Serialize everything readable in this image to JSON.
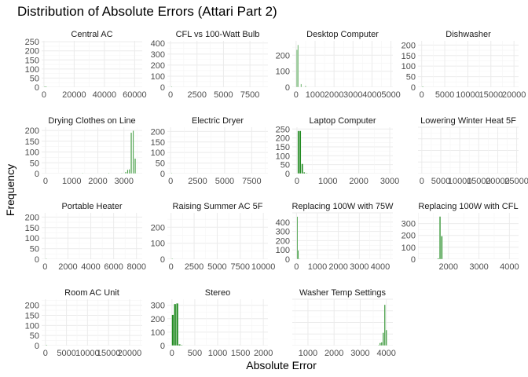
{
  "chart_data": {
    "type": "bar",
    "title": "Distribution of Absolute Errors (Attari Part 2)",
    "xlabel": "Absolute Error",
    "ylabel": "Frequency",
    "bar_color": "#228B22",
    "background": "#ffffff",
    "grid_color": "#ebebeb",
    "panels": [
      {
        "name": "Central AC",
        "xlim": [
          -1500,
          65000
        ],
        "ylim": [
          0,
          255
        ],
        "xticks": [
          0,
          20000,
          40000,
          60000
        ],
        "xtick_labels": [
          "0",
          "20000",
          "40000",
          "60000"
        ],
        "yticks": [
          0,
          50,
          100,
          150,
          200,
          250
        ],
        "bins": [
          {
            "x": 0,
            "w": 2000,
            "y": 3
          }
        ]
      },
      {
        "name": "CFL vs 100-Watt Bulb",
        "xlim": [
          -300,
          9200
        ],
        "ylim": [
          0,
          420
        ],
        "xticks": [
          0,
          2500,
          5000,
          7500
        ],
        "xtick_labels": [
          "0",
          "2500",
          "5000",
          "7500"
        ],
        "yticks": [
          0,
          100,
          200,
          300,
          400
        ],
        "bins": [
          {
            "x": 60,
            "w": 100,
            "y": 2
          }
        ]
      },
      {
        "name": "Desktop Computer",
        "xlim": [
          -200,
          5100
        ],
        "ylim": [
          0,
          290
        ],
        "xticks": [
          0,
          1000,
          2000,
          3000,
          4000,
          5000
        ],
        "xtick_labels": [
          "0",
          "1000",
          "2000",
          "3000",
          "4000",
          "5000"
        ],
        "yticks": [
          0,
          100,
          200
        ],
        "bins": [
          {
            "x": 25,
            "w": 45,
            "y": 235
          },
          {
            "x": 75,
            "w": 45,
            "y": 265
          },
          {
            "x": 240,
            "w": 45,
            "y": 20
          },
          {
            "x": 480,
            "w": 45,
            "y": 8
          }
        ]
      },
      {
        "name": "Dishwasher",
        "xlim": [
          -800,
          21000
        ],
        "ylim": [
          0,
          220
        ],
        "xticks": [
          0,
          5000,
          10000,
          15000,
          20000
        ],
        "xtick_labels": [
          "0",
          "5000",
          "10000",
          "15000",
          "20000"
        ],
        "yticks": [
          0,
          50,
          100,
          150,
          200
        ],
        "bins": [
          {
            "x": 50,
            "w": 400,
            "y": 2
          }
        ]
      },
      {
        "name": "Drying Clothes on Line",
        "xlim": [
          -150,
          3700
        ],
        "ylim": [
          0,
          215
        ],
        "xticks": [
          0,
          1000,
          2000,
          3000
        ],
        "xtick_labels": [
          "0",
          "1000",
          "2000",
          "3000"
        ],
        "yticks": [
          0,
          50,
          100,
          150,
          200
        ],
        "bins": [
          {
            "x": 1400,
            "w": 40,
            "y": 2
          },
          {
            "x": 2400,
            "w": 40,
            "y": 3
          },
          {
            "x": 2900,
            "w": 40,
            "y": 2
          },
          {
            "x": 3050,
            "w": 40,
            "y": 8
          },
          {
            "x": 3120,
            "w": 40,
            "y": 18
          },
          {
            "x": 3190,
            "w": 40,
            "y": 20
          },
          {
            "x": 3260,
            "w": 40,
            "y": 190
          },
          {
            "x": 3340,
            "w": 40,
            "y": 200
          },
          {
            "x": 3410,
            "w": 40,
            "y": 70
          }
        ]
      },
      {
        "name": "Electric Dryer",
        "xlim": [
          -300,
          9000
        ],
        "ylim": [
          0,
          220
        ],
        "xticks": [
          0,
          2500,
          5000,
          7500
        ],
        "xtick_labels": [
          "0",
          "2500",
          "5000",
          "7500"
        ],
        "yticks": [
          0,
          50,
          100,
          150,
          200
        ],
        "bins": [
          {
            "x": 60,
            "w": 100,
            "y": 2
          }
        ]
      },
      {
        "name": "Laptop Computer",
        "xlim": [
          -150,
          3100
        ],
        "ylim": [
          0,
          260
        ],
        "xticks": [
          0,
          1000,
          2000,
          3000
        ],
        "xtick_labels": [
          "0",
          "1000",
          "2000",
          "3000"
        ],
        "yticks": [
          0,
          50,
          100,
          150,
          200,
          250
        ],
        "bins": [
          {
            "x": 20,
            "w": 55,
            "y": 240
          },
          {
            "x": 80,
            "w": 55,
            "y": 240
          },
          {
            "x": 145,
            "w": 55,
            "y": 55
          },
          {
            "x": 210,
            "w": 55,
            "y": 8
          },
          {
            "x": 290,
            "w": 55,
            "y": 2
          }
        ]
      },
      {
        "name": "Lowering Winter Heat 5F",
        "xlim": [
          -1000,
          25500
        ],
        "ylim": [
          0,
          250
        ],
        "xticks": [
          0,
          5000,
          10000,
          15000,
          20000,
          25000
        ],
        "xtick_labels": [
          "0",
          "5000",
          "10000",
          "15000",
          "20000",
          "25000"
        ],
        "yticks": [],
        "bins": []
      },
      {
        "name": "Portable Heater",
        "xlim": [
          -300,
          8500
        ],
        "ylim": [
          0,
          220
        ],
        "xticks": [
          0,
          2000,
          4000,
          6000,
          8000
        ],
        "xtick_labels": [
          "0",
          "2000",
          "4000",
          "6000",
          "8000"
        ],
        "yticks": [
          0,
          50,
          100,
          150,
          200
        ],
        "bins": [
          {
            "x": 50,
            "w": 100,
            "y": 2
          }
        ]
      },
      {
        "name": "Raising Summer AC 5F",
        "xlim": [
          -400,
          10500
        ],
        "ylim": [
          0,
          290
        ],
        "xticks": [
          0,
          2500,
          5000,
          7500,
          10000
        ],
        "xtick_labels": [
          "0",
          "2500",
          "5000",
          "7500",
          "10000"
        ],
        "yticks": [
          0,
          100,
          200
        ],
        "bins": [
          {
            "x": 50,
            "w": 150,
            "y": 2
          }
        ]
      },
      {
        "name": "Replacing 100W with 75W",
        "xlim": [
          -200,
          4600
        ],
        "ylim": [
          0,
          500
        ],
        "xticks": [
          0,
          1000,
          2000,
          3000,
          4000
        ],
        "xtick_labels": [
          "0",
          "1000",
          "2000",
          "3000",
          "4000"
        ],
        "yticks": [
          0,
          100,
          200,
          300,
          400
        ],
        "bins": [
          {
            "x": 15,
            "w": 45,
            "y": 460
          },
          {
            "x": 60,
            "w": 45,
            "y": 95
          },
          {
            "x": 140,
            "w": 45,
            "y": 3
          }
        ]
      },
      {
        "name": "Replacing 100W with CFL",
        "xlim": [
          1000,
          4300
        ],
        "ylim": [
          0,
          390
        ],
        "xticks": [
          2000,
          3000,
          4000
        ],
        "xtick_labels": [
          "2000",
          "3000",
          "4000"
        ],
        "yticks": [
          0,
          100,
          200,
          300
        ],
        "bins": [
          {
            "x": 1640,
            "w": 45,
            "y": 8
          },
          {
            "x": 1700,
            "w": 45,
            "y": 360
          },
          {
            "x": 1760,
            "w": 45,
            "y": 195
          }
        ]
      },
      {
        "name": "Room AC Unit",
        "xlim": [
          -900,
          23000
        ],
        "ylim": [
          0,
          230
        ],
        "xticks": [
          0,
          5000,
          10000,
          15000,
          20000
        ],
        "xtick_labels": [
          "0",
          "5000",
          "10000",
          "15000",
          "20000"
        ],
        "yticks": [
          0,
          50,
          100,
          150,
          200
        ],
        "bins": [
          {
            "x": 50,
            "w": 400,
            "y": 2
          }
        ]
      },
      {
        "name": "Stereo",
        "xlim": [
          -100,
          2100
        ],
        "ylim": [
          0,
          345
        ],
        "xticks": [
          0,
          500,
          1000,
          1500,
          2000
        ],
        "xtick_labels": [
          "0",
          "500",
          "1000",
          "1500",
          "2000"
        ],
        "yticks": [
          0,
          100,
          200,
          300
        ],
        "bins": [
          {
            "x": -5,
            "w": 45,
            "y": 230
          },
          {
            "x": 45,
            "w": 45,
            "y": 310
          },
          {
            "x": 95,
            "w": 45,
            "y": 315
          },
          {
            "x": 145,
            "w": 45,
            "y": 10
          },
          {
            "x": 190,
            "w": 45,
            "y": 3
          }
        ]
      },
      {
        "name": "Washer Temp Settings",
        "xlim": [
          400,
          4250
        ],
        "ylim": [
          0,
          340
        ],
        "xticks": [
          1000,
          2000,
          3000,
          4000
        ],
        "xtick_labels": [
          "1000",
          "2000",
          "3000",
          "4000"
        ],
        "yticks": [],
        "bins": [
          {
            "x": 3680,
            "w": 45,
            "y": 3
          },
          {
            "x": 3740,
            "w": 45,
            "y": 20
          },
          {
            "x": 3800,
            "w": 45,
            "y": 25
          },
          {
            "x": 3860,
            "w": 45,
            "y": 95
          },
          {
            "x": 3920,
            "w": 45,
            "y": 300
          },
          {
            "x": 3980,
            "w": 45,
            "y": 115
          }
        ]
      }
    ]
  }
}
